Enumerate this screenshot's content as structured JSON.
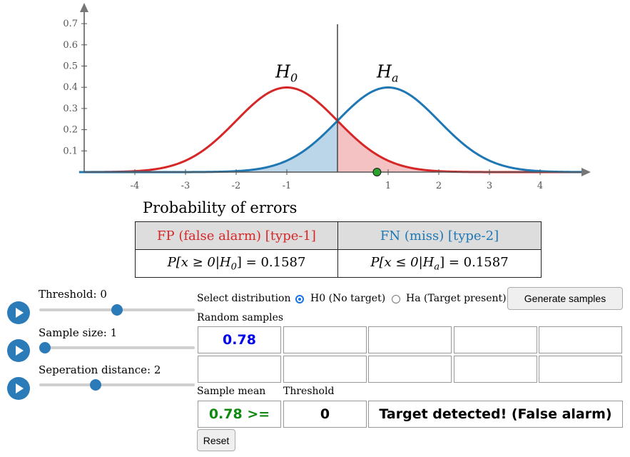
{
  "chart_data": {
    "type": "line",
    "xlim": [
      -5.1,
      4.9
    ],
    "ylim": [
      0,
      0.75
    ],
    "x_ticks": [
      "-4",
      "-3",
      "-2",
      "-1",
      "1",
      "2",
      "3",
      "4"
    ],
    "x_tick_values": [
      -4,
      -3,
      -2,
      -1,
      1,
      2,
      3,
      4
    ],
    "y_ticks": [
      "0.1",
      "0.2",
      "0.3",
      "0.4",
      "0.5",
      "0.6",
      "0.7"
    ],
    "y_tick_values": [
      0.1,
      0.2,
      0.3,
      0.4,
      0.5,
      0.6,
      0.7
    ],
    "series": [
      {
        "label_main": "H",
        "label_sub": "0",
        "mean": -1,
        "sd": 1,
        "color": "#d62728"
      },
      {
        "label_main": "H",
        "label_sub": "a",
        "mean": 1,
        "sd": 1,
        "color": "#1f77b4"
      }
    ],
    "threshold": 0,
    "sample_point": {
      "x": 0.78,
      "y": 0,
      "color": "#2ca02c"
    },
    "shaded_fp_color": "#f4c2c3",
    "shaded_fn_color": "#bcd6e9"
  },
  "errors": {
    "title": "Probability of errors",
    "fp_header": "FP (false alarm) [type-1]",
    "fn_header": "FN (miss) [type-2]",
    "fp_formula": "P[x ≥ 0|H",
    "fp_formula_sub": "0",
    "fp_formula_tail": "] = 0.1587",
    "fn_formula": "P[x ≤ 0|H",
    "fn_formula_sub": "a",
    "fn_formula_tail": "] = 0.1587"
  },
  "controls": {
    "threshold": {
      "label": "Threshold: 0",
      "fraction": 0.5
    },
    "sample_size": {
      "label": "Sample size: 1",
      "fraction": 0.0
    },
    "separation": {
      "label": "Seperation distance: 2",
      "fraction": 0.35
    }
  },
  "select": {
    "label": "Select distribution",
    "option_h0": "H0 (No target)",
    "option_ha": "Ha (Target present)",
    "selected": "h0",
    "generate_label": "Generate samples"
  },
  "samples": {
    "label": "Random samples",
    "values": [
      "0.78",
      "",
      "",
      "",
      "",
      "",
      "",
      "",
      "",
      ""
    ],
    "value_color": "#0000ee"
  },
  "result": {
    "mean_label": "Sample mean",
    "threshold_label": "Threshold",
    "mean_value": "0.78 >=",
    "mean_color": "#118811",
    "threshold_value": "0",
    "message": "Target detected! (False alarm)"
  },
  "reset_label": "Reset"
}
